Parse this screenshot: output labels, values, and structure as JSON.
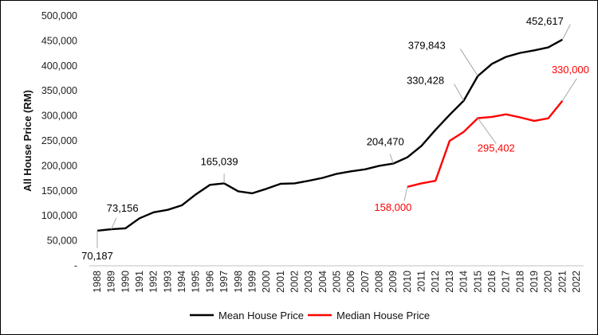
{
  "chart_data": {
    "type": "line",
    "title": "",
    "ylabel": "All House Price (RM)",
    "xlabel": "",
    "ylim": [
      0,
      500000
    ],
    "y_ticks": [
      0,
      50000,
      100000,
      150000,
      200000,
      250000,
      300000,
      350000,
      400000,
      450000,
      500000
    ],
    "y_tick_labels": [
      "-",
      "50,000",
      "100,000",
      "150,000",
      "200,000",
      "250,000",
      "300,000",
      "350,000",
      "400,000",
      "450,000",
      "500,000"
    ],
    "grid": false,
    "legend_position": "bottom",
    "categories": [
      "1988",
      "1989",
      "1990",
      "1991",
      "1992",
      "1993",
      "1994",
      "1995",
      "1996",
      "1997",
      "1998",
      "1999",
      "2000",
      "2001",
      "2002",
      "2003",
      "2004",
      "2005",
      "2006",
      "2007",
      "2008",
      "2009",
      "2010",
      "2011",
      "2012",
      "2013",
      "2014",
      "2015",
      "2016",
      "2017",
      "2018",
      "2019",
      "2020",
      "2021",
      "2022"
    ],
    "series": [
      {
        "name": "Mean House Price",
        "color": "#000000",
        "values": [
          70187,
          73156,
          75000,
          95000,
          107000,
          112000,
          121000,
          143000,
          162000,
          165039,
          149000,
          145000,
          154000,
          164000,
          165000,
          170000,
          176000,
          184000,
          189000,
          193000,
          200000,
          204470,
          217000,
          240000,
          272000,
          302000,
          330428,
          379843,
          404000,
          418000,
          426000,
          431000,
          437000,
          452617,
          null
        ]
      },
      {
        "name": "Median House Price",
        "color": "#ff0000",
        "values": [
          null,
          null,
          null,
          null,
          null,
          null,
          null,
          null,
          null,
          null,
          null,
          null,
          null,
          null,
          null,
          null,
          null,
          null,
          null,
          null,
          null,
          null,
          158000,
          165000,
          170000,
          250000,
          268000,
          295402,
          298000,
          303000,
          297000,
          290000,
          295000,
          330000,
          null
        ]
      }
    ],
    "annotations": [
      {
        "series": 0,
        "category": "1988",
        "text": "70,187",
        "color": "#000000"
      },
      {
        "series": 0,
        "category": "1989",
        "text": "73,156",
        "color": "#000000"
      },
      {
        "series": 0,
        "category": "1997",
        "text": "165,039",
        "color": "#000000"
      },
      {
        "series": 0,
        "category": "2009",
        "text": "204,470",
        "color": "#000000"
      },
      {
        "series": 0,
        "category": "2014",
        "text": "330,428",
        "color": "#000000"
      },
      {
        "series": 0,
        "category": "2015",
        "text": "379,843",
        "color": "#000000"
      },
      {
        "series": 0,
        "category": "2021",
        "text": "452,617",
        "color": "#000000"
      },
      {
        "series": 1,
        "category": "2010",
        "text": "158,000",
        "color": "#ff0000"
      },
      {
        "series": 1,
        "category": "2015",
        "text": "295,402",
        "color": "#ff0000"
      },
      {
        "series": 1,
        "category": "2021",
        "text": "330,000",
        "color": "#ff0000"
      }
    ]
  }
}
